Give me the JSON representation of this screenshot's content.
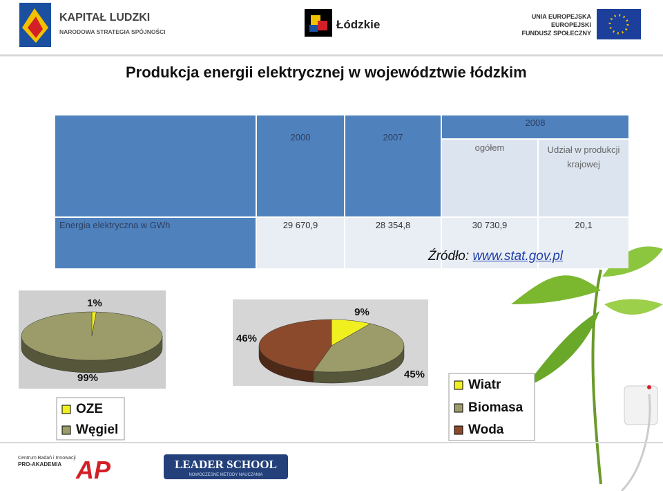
{
  "header": {
    "kapital_ludzki": "KAPITAŁ LUDZKI",
    "strategy": "NARODOWA STRATEGIA SPÓJNOŚCI",
    "region": "Łódzkie",
    "eu_1": "UNIA EUROPEJSKA",
    "eu_2": "EUROPEJSKI",
    "eu_3": "FUNDUSZ SPOŁECZNY"
  },
  "title": "Produkcja energii elektrycznej w województwie łódzkim",
  "table": {
    "header": {
      "col_2000": "2000",
      "col_2007": "2007",
      "col_2008": "2008",
      "sub_total": "ogółem",
      "sub_share": "Udział w produkcji krajowej"
    },
    "rows": [
      [
        "Energia elektryczna w GWh",
        "29 670,9",
        "28 354,8",
        "30 730,9",
        "20,1"
      ]
    ]
  },
  "source": {
    "label": "Źródło:",
    "url": "www.stat.gov.pl"
  },
  "chart_data": [
    {
      "type": "pie",
      "categories": [
        "OZE",
        "Węgiel"
      ],
      "values": [
        1,
        99
      ],
      "value_labels": [
        "1%",
        "99%"
      ],
      "colors": [
        "#f0f020",
        "#9c9c6a"
      ]
    },
    {
      "type": "pie",
      "categories": [
        "Wiatr",
        "Biomasa",
        "Woda"
      ],
      "values": [
        9,
        45,
        46
      ],
      "value_labels": [
        "9%",
        "45%",
        "46%"
      ],
      "colors": [
        "#f0f020",
        "#9c9c6a",
        "#8c4a2c"
      ]
    }
  ],
  "footer": {
    "cbi_1": "Centrum Badań i Innowacji",
    "cbi_2": "PRO-AKADEMIA",
    "ap": "AP",
    "leader": "LEADER SCHOOL",
    "leader_sub": "NOWOCZESNE METODY NAUCZANIA"
  }
}
